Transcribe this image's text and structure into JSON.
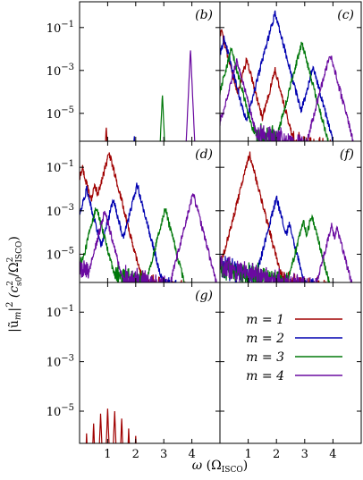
{
  "chart_data": {
    "type": "line",
    "panels": [
      {
        "id": "b",
        "label": "(b)",
        "ytick_labels": [
          "10^-1",
          "10^-3",
          "10^-5"
        ],
        "xtick_labels": []
      },
      {
        "id": "c",
        "label": "(c)",
        "ytick_labels": [],
        "xtick_labels": []
      },
      {
        "id": "d",
        "label": "(d)",
        "ytick_labels": [
          "10^-1",
          "10^-3",
          "10^-5"
        ],
        "xtick_labels": []
      },
      {
        "id": "f",
        "label": "(f)",
        "ytick_labels": [],
        "xtick_labels": []
      },
      {
        "id": "g",
        "label": "(g)",
        "ytick_labels": [
          "10^-1",
          "10^-3",
          "10^-5"
        ],
        "xtick_labels": [
          "1",
          "2",
          "3",
          "4"
        ]
      },
      {
        "id": "legend",
        "label": "",
        "ytick_labels": [],
        "xtick_labels": [
          "1",
          "2",
          "3",
          "4"
        ]
      }
    ],
    "xlim": [
      0,
      5
    ],
    "ylim_log10": [
      -6.3,
      0.2
    ],
    "yscale": "log",
    "xticks": [
      1,
      2,
      3,
      4
    ],
    "yticks_log10": [
      -1,
      -3,
      -5
    ],
    "ylabel": "|ũ_m|² (c²_s0/Ω²_ISCO)",
    "xlabel": "ω (Ω_ISCO)",
    "legend_placement": "bottom-right panel",
    "series": [
      {
        "name": "m = 1",
        "color": "#a00000"
      },
      {
        "name": "m = 2",
        "color": "#0000b0"
      },
      {
        "name": "m = 3",
        "color": "#00780a"
      },
      {
        "name": "m = 4",
        "color": "#6a0aa0"
      }
    ],
    "peaks": {
      "b": [
        {
          "series": 0,
          "x": 0.95,
          "y": -5.6
        },
        {
          "series": 1,
          "x": 1.95,
          "y": -6.0
        },
        {
          "series": 2,
          "x": 2.95,
          "y": -4.1
        },
        {
          "series": 3,
          "x": 3.95,
          "y": -2.0
        }
      ],
      "c": [
        {
          "series": 0,
          "x": 0.05,
          "y": -1.2
        },
        {
          "series": 0,
          "x": 0.95,
          "y": -2.5
        },
        {
          "series": 0,
          "x": 1.95,
          "y": -3.0
        },
        {
          "series": 1,
          "x": 0.15,
          "y": -1.5
        },
        {
          "series": 1,
          "x": 1.95,
          "y": -0.3
        },
        {
          "series": 1,
          "x": 3.3,
          "y": -2.8
        },
        {
          "series": 2,
          "x": 0.4,
          "y": -2.0
        },
        {
          "series": 2,
          "x": 2.9,
          "y": -1.7
        },
        {
          "series": 3,
          "x": 0.6,
          "y": -2.5
        },
        {
          "series": 3,
          "x": 3.9,
          "y": -2.2
        }
      ],
      "d": [
        {
          "series": 0,
          "x": 0.1,
          "y": -1.0
        },
        {
          "series": 0,
          "x": 0.55,
          "y": -1.8
        },
        {
          "series": 0,
          "x": 1.05,
          "y": -0.3
        },
        {
          "series": 1,
          "x": 0.25,
          "y": -2.0
        },
        {
          "series": 1,
          "x": 2.05,
          "y": -1.8
        },
        {
          "series": 1,
          "x": 1.2,
          "y": -2.5
        },
        {
          "series": 2,
          "x": 0.6,
          "y": -2.8
        },
        {
          "series": 2,
          "x": 3.05,
          "y": -2.9
        },
        {
          "series": 3,
          "x": 0.9,
          "y": -3.0
        },
        {
          "series": 3,
          "x": 4.05,
          "y": -2.2
        }
      ],
      "f": [
        {
          "series": 0,
          "x": 1.05,
          "y": -0.4
        },
        {
          "series": 1,
          "x": 2.0,
          "y": -2.4
        },
        {
          "series": 1,
          "x": 2.45,
          "y": -3.6
        },
        {
          "series": 2,
          "x": 2.95,
          "y": -3.5
        },
        {
          "series": 2,
          "x": 3.25,
          "y": -3.2
        },
        {
          "series": 3,
          "x": 3.95,
          "y": -3.7
        },
        {
          "series": 3,
          "x": 4.15,
          "y": -3.8
        }
      ],
      "g": [
        {
          "series": 0,
          "x": 0.25,
          "y": -5.9
        },
        {
          "series": 0,
          "x": 0.5,
          "y": -5.5
        },
        {
          "series": 0,
          "x": 0.75,
          "y": -5.1
        },
        {
          "series": 0,
          "x": 1.0,
          "y": -4.9
        },
        {
          "series": 0,
          "x": 1.25,
          "y": -5.0
        },
        {
          "series": 0,
          "x": 1.5,
          "y": -5.3
        },
        {
          "series": 0,
          "x": 1.75,
          "y": -5.7
        },
        {
          "series": 0,
          "x": 2.0,
          "y": -6.0
        }
      ]
    }
  }
}
